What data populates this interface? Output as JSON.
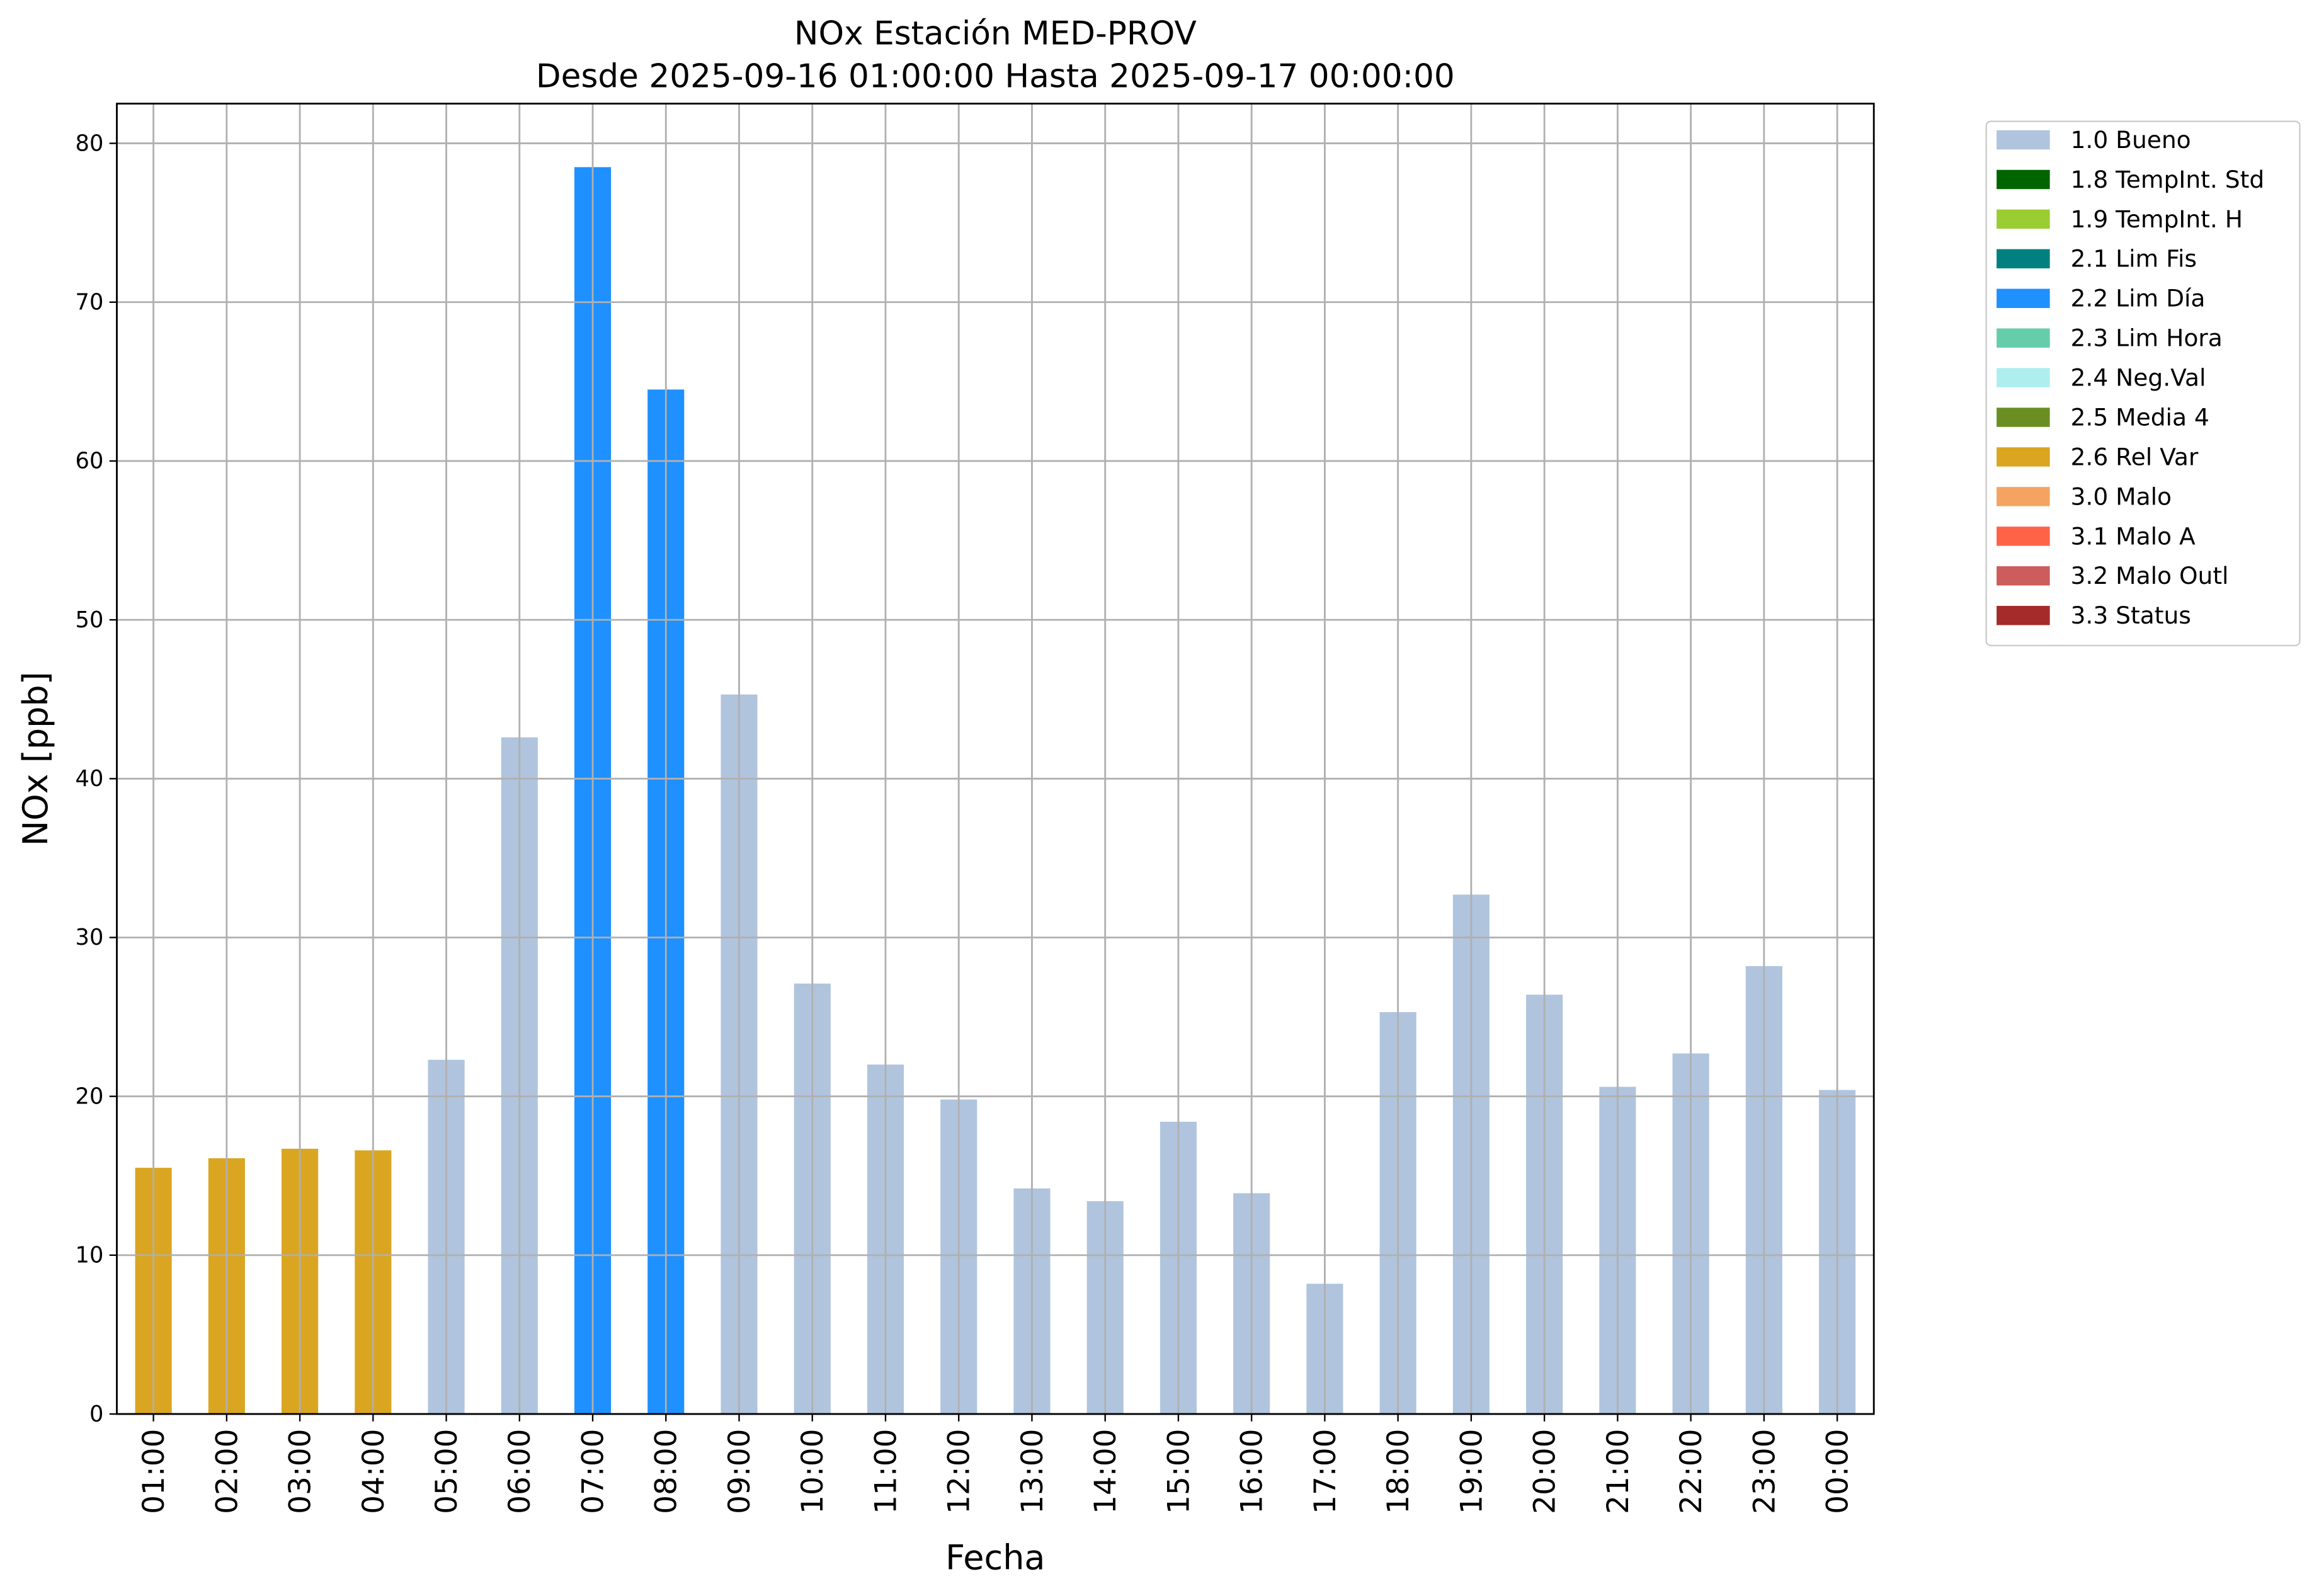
{
  "chart_data": {
    "type": "bar",
    "title": "NOx Estación MED-PROV",
    "subtitle": "Desde 2025-09-16 01:00:00 Hasta 2025-09-17 00:00:00",
    "x_label": "Fecha",
    "y_label": "NOx [ppb]",
    "categories": [
      "01:00",
      "02:00",
      "03:00",
      "04:00",
      "05:00",
      "06:00",
      "07:00",
      "08:00",
      "09:00",
      "10:00",
      "11:00",
      "12:00",
      "13:00",
      "14:00",
      "15:00",
      "16:00",
      "17:00",
      "18:00",
      "19:00",
      "20:00",
      "21:00",
      "22:00",
      "23:00",
      "00:00"
    ],
    "series": [
      {
        "name": "1.0 Bueno",
        "color": "#b0c4de",
        "values": [
          null,
          null,
          null,
          null,
          22.3,
          42.6,
          null,
          null,
          45.3,
          27.1,
          22.0,
          19.8,
          14.2,
          13.4,
          18.4,
          13.9,
          8.2,
          25.3,
          32.7,
          26.4,
          20.6,
          22.7,
          28.2,
          20.4
        ]
      },
      {
        "name": "1.8 TempInt. Std",
        "color": "#006400",
        "values": [
          null,
          null,
          null,
          null,
          null,
          null,
          null,
          null,
          null,
          null,
          null,
          null,
          null,
          null,
          null,
          null,
          null,
          null,
          null,
          null,
          null,
          null,
          null,
          null
        ]
      },
      {
        "name": "1.9 TempInt. H",
        "color": "#9acd32",
        "values": [
          null,
          null,
          null,
          null,
          null,
          null,
          null,
          null,
          null,
          null,
          null,
          null,
          null,
          null,
          null,
          null,
          null,
          null,
          null,
          null,
          null,
          null,
          null,
          null
        ]
      },
      {
        "name": "2.1 Lim Fis",
        "color": "#008080",
        "values": [
          null,
          null,
          null,
          null,
          null,
          null,
          null,
          null,
          null,
          null,
          null,
          null,
          null,
          null,
          null,
          null,
          null,
          null,
          null,
          null,
          null,
          null,
          null,
          null
        ]
      },
      {
        "name": "2.2 Lim Día",
        "color": "#1e90ff",
        "values": [
          null,
          null,
          null,
          null,
          null,
          null,
          78.5,
          64.5,
          null,
          null,
          null,
          null,
          null,
          null,
          null,
          null,
          null,
          null,
          null,
          null,
          null,
          null,
          null,
          null
        ]
      },
      {
        "name": "2.3 Lim Hora",
        "color": "#66cdaa",
        "values": [
          null,
          null,
          null,
          null,
          null,
          null,
          null,
          null,
          null,
          null,
          null,
          null,
          null,
          null,
          null,
          null,
          null,
          null,
          null,
          null,
          null,
          null,
          null,
          null
        ]
      },
      {
        "name": "2.4 Neg.Val",
        "color": "#afeeee",
        "values": [
          null,
          null,
          null,
          null,
          null,
          null,
          null,
          null,
          null,
          null,
          null,
          null,
          null,
          null,
          null,
          null,
          null,
          null,
          null,
          null,
          null,
          null,
          null,
          null
        ]
      },
      {
        "name": "2.5 Media 4",
        "color": "#6b8e23",
        "values": [
          null,
          null,
          null,
          null,
          null,
          null,
          null,
          null,
          null,
          null,
          null,
          null,
          null,
          null,
          null,
          null,
          null,
          null,
          null,
          null,
          null,
          null,
          null,
          null
        ]
      },
      {
        "name": "2.6 Rel Var",
        "color": "#daa520",
        "values": [
          15.5,
          16.1,
          16.7,
          16.6,
          null,
          null,
          null,
          null,
          null,
          null,
          null,
          null,
          null,
          null,
          null,
          null,
          null,
          null,
          null,
          null,
          null,
          null,
          null,
          null
        ]
      },
      {
        "name": "3.0 Malo",
        "color": "#f4a460",
        "values": [
          null,
          null,
          null,
          null,
          null,
          null,
          null,
          null,
          null,
          null,
          null,
          null,
          null,
          null,
          null,
          null,
          null,
          null,
          null,
          null,
          null,
          null,
          null,
          null
        ]
      },
      {
        "name": "3.1 Malo A",
        "color": "#ff6347",
        "values": [
          null,
          null,
          null,
          null,
          null,
          null,
          null,
          null,
          null,
          null,
          null,
          null,
          null,
          null,
          null,
          null,
          null,
          null,
          null,
          null,
          null,
          null,
          null,
          null
        ]
      },
      {
        "name": "3.2 Malo Outl",
        "color": "#cd5c5c",
        "values": [
          null,
          null,
          null,
          null,
          null,
          null,
          null,
          null,
          null,
          null,
          null,
          null,
          null,
          null,
          null,
          null,
          null,
          null,
          null,
          null,
          null,
          null,
          null,
          null
        ]
      },
      {
        "name": "3.3 Status",
        "color": "#a52a2a",
        "values": [
          null,
          null,
          null,
          null,
          null,
          null,
          null,
          null,
          null,
          null,
          null,
          null,
          null,
          null,
          null,
          null,
          null,
          null,
          null,
          null,
          null,
          null,
          null,
          null
        ]
      }
    ],
    "ylim": [
      0,
      82.5
    ],
    "yticks": [
      0,
      10,
      20,
      30,
      40,
      50,
      60,
      70,
      80
    ],
    "grid": true,
    "legend": "outside-upper-right"
  }
}
